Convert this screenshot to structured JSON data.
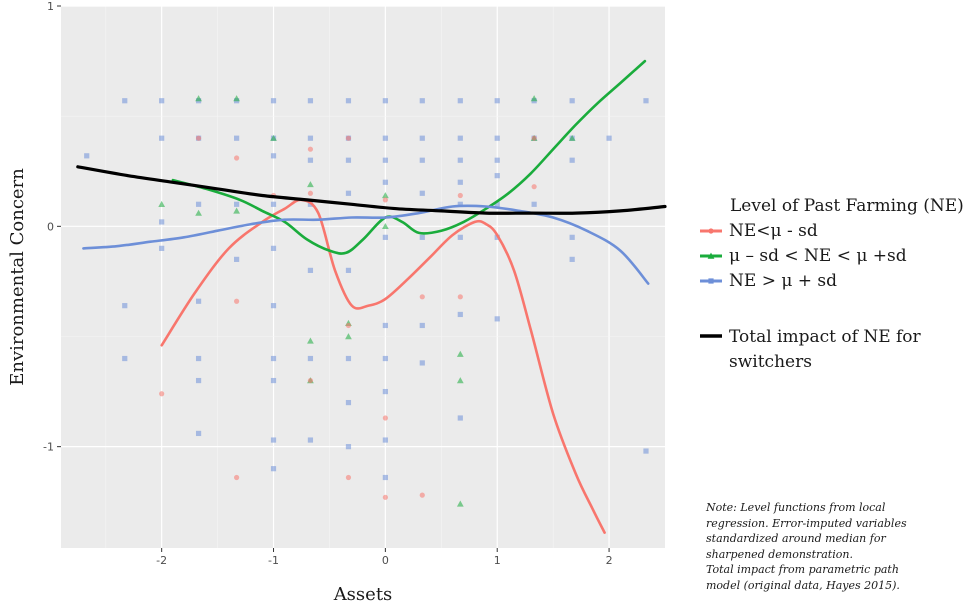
{
  "chart_data": {
    "type": "scatter",
    "xlabel": "Assets",
    "ylabel": "Environmental Concern",
    "xlim": [
      -2.9,
      2.5
    ],
    "ylim": [
      -1.46,
      1.0
    ],
    "x_ticks": [
      -2,
      -1,
      0,
      1,
      2
    ],
    "x_tick_labels": [
      "-2",
      "-1",
      "0",
      "1",
      "2"
    ],
    "y_ticks": [
      -1,
      0,
      1
    ],
    "y_tick_labels": [
      "-1",
      "0",
      "1"
    ],
    "grid": true,
    "legend_position": "right",
    "legend_title": "Level of Past Farming (NE)",
    "series": [
      {
        "name": "NE<μ - sd",
        "color": "#f8766d",
        "marker": "circle",
        "points": [
          [
            -2.0,
            -0.76
          ],
          [
            -1.67,
            0.4
          ],
          [
            -1.33,
            0.31
          ],
          [
            -1.33,
            -0.34
          ],
          [
            -1.33,
            -1.14
          ],
          [
            -1.0,
            0.14
          ],
          [
            -0.67,
            0.35
          ],
          [
            -0.67,
            0.15
          ],
          [
            -0.67,
            -0.7
          ],
          [
            -0.33,
            0.4
          ],
          [
            -0.33,
            -0.45
          ],
          [
            -0.33,
            -1.14
          ],
          [
            0.0,
            0.12
          ],
          [
            0.0,
            -0.87
          ],
          [
            0.0,
            -1.23
          ],
          [
            0.33,
            -1.22
          ],
          [
            0.33,
            -0.32
          ],
          [
            0.67,
            -0.32
          ],
          [
            0.67,
            0.14
          ],
          [
            1.33,
            0.18
          ],
          [
            1.33,
            0.4
          ]
        ],
        "smooth": [
          [
            -2.0,
            -0.54
          ],
          [
            -1.7,
            -0.3
          ],
          [
            -1.4,
            -0.1
          ],
          [
            -1.1,
            0.02
          ],
          [
            -0.9,
            0.08
          ],
          [
            -0.75,
            0.12
          ],
          [
            -0.6,
            0.06
          ],
          [
            -0.45,
            -0.2
          ],
          [
            -0.3,
            -0.36
          ],
          [
            -0.15,
            -0.36
          ],
          [
            0.0,
            -0.33
          ],
          [
            0.2,
            -0.24
          ],
          [
            0.4,
            -0.14
          ],
          [
            0.6,
            -0.04
          ],
          [
            0.8,
            0.02
          ],
          [
            0.9,
            0.01
          ],
          [
            1.0,
            -0.04
          ],
          [
            1.15,
            -0.2
          ],
          [
            1.3,
            -0.47
          ],
          [
            1.5,
            -0.85
          ],
          [
            1.7,
            -1.12
          ],
          [
            1.85,
            -1.28
          ],
          [
            1.96,
            -1.39
          ]
        ]
      },
      {
        "name": "μ – sd < NE < μ +sd",
        "color": "#1aac3c",
        "marker": "triangle",
        "points": [
          [
            -2.0,
            0.1
          ],
          [
            -1.67,
            0.58
          ],
          [
            -1.67,
            0.06
          ],
          [
            -1.33,
            0.58
          ],
          [
            -1.33,
            0.07
          ],
          [
            -1.0,
            0.4
          ],
          [
            -0.67,
            0.19
          ],
          [
            -0.67,
            -0.52
          ],
          [
            -0.67,
            -0.7
          ],
          [
            -0.33,
            -0.44
          ],
          [
            -0.33,
            -0.5
          ],
          [
            0.0,
            0.14
          ],
          [
            0.0,
            0.0
          ],
          [
            0.67,
            -0.58
          ],
          [
            0.67,
            -0.7
          ],
          [
            0.67,
            -1.26
          ],
          [
            1.33,
            0.58
          ],
          [
            1.33,
            0.4
          ],
          [
            1.67,
            0.4
          ]
        ],
        "smooth": [
          [
            -1.9,
            0.21
          ],
          [
            -1.6,
            0.17
          ],
          [
            -1.3,
            0.12
          ],
          [
            -1.1,
            0.07
          ],
          [
            -0.9,
            0.02
          ],
          [
            -0.7,
            -0.06
          ],
          [
            -0.5,
            -0.11
          ],
          [
            -0.35,
            -0.12
          ],
          [
            -0.2,
            -0.06
          ],
          [
            0.0,
            0.04
          ],
          [
            0.15,
            0.02
          ],
          [
            0.3,
            -0.03
          ],
          [
            0.5,
            -0.02
          ],
          [
            0.7,
            0.02
          ],
          [
            0.9,
            0.08
          ],
          [
            1.1,
            0.15
          ],
          [
            1.3,
            0.24
          ],
          [
            1.5,
            0.35
          ],
          [
            1.7,
            0.46
          ],
          [
            1.9,
            0.56
          ],
          [
            2.1,
            0.65
          ],
          [
            2.32,
            0.75
          ]
        ]
      },
      {
        "name": "NE > μ + sd",
        "color": "#6d8fd8",
        "marker": "square",
        "points": [
          [
            -2.67,
            0.32
          ],
          [
            -2.33,
            0.57
          ],
          [
            -2.33,
            -0.36
          ],
          [
            -2.33,
            -0.6
          ],
          [
            -2.0,
            0.57
          ],
          [
            -2.0,
            0.4
          ],
          [
            -2.0,
            0.02
          ],
          [
            -2.0,
            -0.1
          ],
          [
            -1.67,
            0.57
          ],
          [
            -1.67,
            0.4
          ],
          [
            -1.67,
            0.1
          ],
          [
            -1.67,
            -0.34
          ],
          [
            -1.67,
            -0.6
          ],
          [
            -1.67,
            -0.7
          ],
          [
            -1.67,
            -0.94
          ],
          [
            -1.33,
            0.57
          ],
          [
            -1.33,
            0.4
          ],
          [
            -1.33,
            0.1
          ],
          [
            -1.33,
            -0.15
          ],
          [
            -1.0,
            0.57
          ],
          [
            -1.0,
            0.4
          ],
          [
            -1.0,
            0.32
          ],
          [
            -1.0,
            0.1
          ],
          [
            -1.0,
            -0.1
          ],
          [
            -1.0,
            -0.36
          ],
          [
            -1.0,
            -0.6
          ],
          [
            -1.0,
            -0.7
          ],
          [
            -1.0,
            -0.97
          ],
          [
            -1.0,
            -1.1
          ],
          [
            -0.67,
            0.57
          ],
          [
            -0.67,
            0.4
          ],
          [
            -0.67,
            0.3
          ],
          [
            -0.67,
            0.1
          ],
          [
            -0.67,
            -0.2
          ],
          [
            -0.67,
            -0.6
          ],
          [
            -0.67,
            -0.97
          ],
          [
            -0.33,
            0.57
          ],
          [
            -0.33,
            0.4
          ],
          [
            -0.33,
            0.3
          ],
          [
            -0.33,
            0.15
          ],
          [
            -0.33,
            -0.2
          ],
          [
            -0.33,
            -0.6
          ],
          [
            -0.33,
            -0.8
          ],
          [
            -0.33,
            -1.0
          ],
          [
            0.0,
            0.57
          ],
          [
            0.0,
            0.4
          ],
          [
            0.0,
            0.3
          ],
          [
            0.0,
            0.2
          ],
          [
            0.0,
            -0.05
          ],
          [
            0.0,
            -0.45
          ],
          [
            0.0,
            -0.6
          ],
          [
            0.0,
            -0.75
          ],
          [
            0.0,
            -0.97
          ],
          [
            0.0,
            -1.14
          ],
          [
            0.33,
            0.57
          ],
          [
            0.33,
            0.4
          ],
          [
            0.33,
            0.3
          ],
          [
            0.33,
            0.15
          ],
          [
            0.33,
            -0.05
          ],
          [
            0.33,
            -0.45
          ],
          [
            0.33,
            -0.62
          ],
          [
            0.67,
            0.57
          ],
          [
            0.67,
            0.4
          ],
          [
            0.67,
            0.3
          ],
          [
            0.67,
            0.2
          ],
          [
            0.67,
            0.1
          ],
          [
            0.67,
            -0.05
          ],
          [
            0.67,
            -0.4
          ],
          [
            0.67,
            -0.87
          ],
          [
            1.0,
            0.57
          ],
          [
            1.0,
            0.4
          ],
          [
            1.0,
            0.3
          ],
          [
            1.0,
            0.23
          ],
          [
            1.0,
            0.1
          ],
          [
            1.0,
            -0.05
          ],
          [
            1.0,
            -0.42
          ],
          [
            1.33,
            0.57
          ],
          [
            1.33,
            0.4
          ],
          [
            1.33,
            0.1
          ],
          [
            1.67,
            0.57
          ],
          [
            1.67,
            0.4
          ],
          [
            1.67,
            0.3
          ],
          [
            1.67,
            -0.05
          ],
          [
            1.67,
            -0.15
          ],
          [
            2.0,
            0.4
          ],
          [
            2.33,
            0.57
          ],
          [
            2.33,
            -1.02
          ]
        ],
        "smooth": [
          [
            -2.7,
            -0.1
          ],
          [
            -2.4,
            -0.09
          ],
          [
            -2.1,
            -0.07
          ],
          [
            -1.8,
            -0.05
          ],
          [
            -1.5,
            -0.02
          ],
          [
            -1.2,
            0.01
          ],
          [
            -0.9,
            0.03
          ],
          [
            -0.6,
            0.03
          ],
          [
            -0.3,
            0.04
          ],
          [
            0.0,
            0.04
          ],
          [
            0.3,
            0.06
          ],
          [
            0.6,
            0.09
          ],
          [
            0.9,
            0.09
          ],
          [
            1.2,
            0.07
          ],
          [
            1.5,
            0.04
          ],
          [
            1.8,
            -0.02
          ],
          [
            2.1,
            -0.11
          ],
          [
            2.35,
            -0.26
          ]
        ]
      },
      {
        "name": "Total impact of NE for switchers",
        "color": "#000000",
        "marker": "none",
        "smooth": [
          [
            -2.75,
            0.27
          ],
          [
            -2.3,
            0.23
          ],
          [
            -1.9,
            0.2
          ],
          [
            -1.5,
            0.17
          ],
          [
            -1.1,
            0.14
          ],
          [
            -0.7,
            0.12
          ],
          [
            -0.3,
            0.1
          ],
          [
            0.1,
            0.08
          ],
          [
            0.5,
            0.07
          ],
          [
            0.9,
            0.06
          ],
          [
            1.3,
            0.06
          ],
          [
            1.7,
            0.06
          ],
          [
            2.1,
            0.07
          ],
          [
            2.5,
            0.09
          ]
        ]
      }
    ]
  },
  "note": {
    "lines": [
      "Note:  Level functions from local",
      "regression. Error-imputed variables",
      "standardized around median for",
      "sharpened demonstration.",
      "Total impact from parametric path",
      "model (original data, Hayes 2015)."
    ]
  }
}
